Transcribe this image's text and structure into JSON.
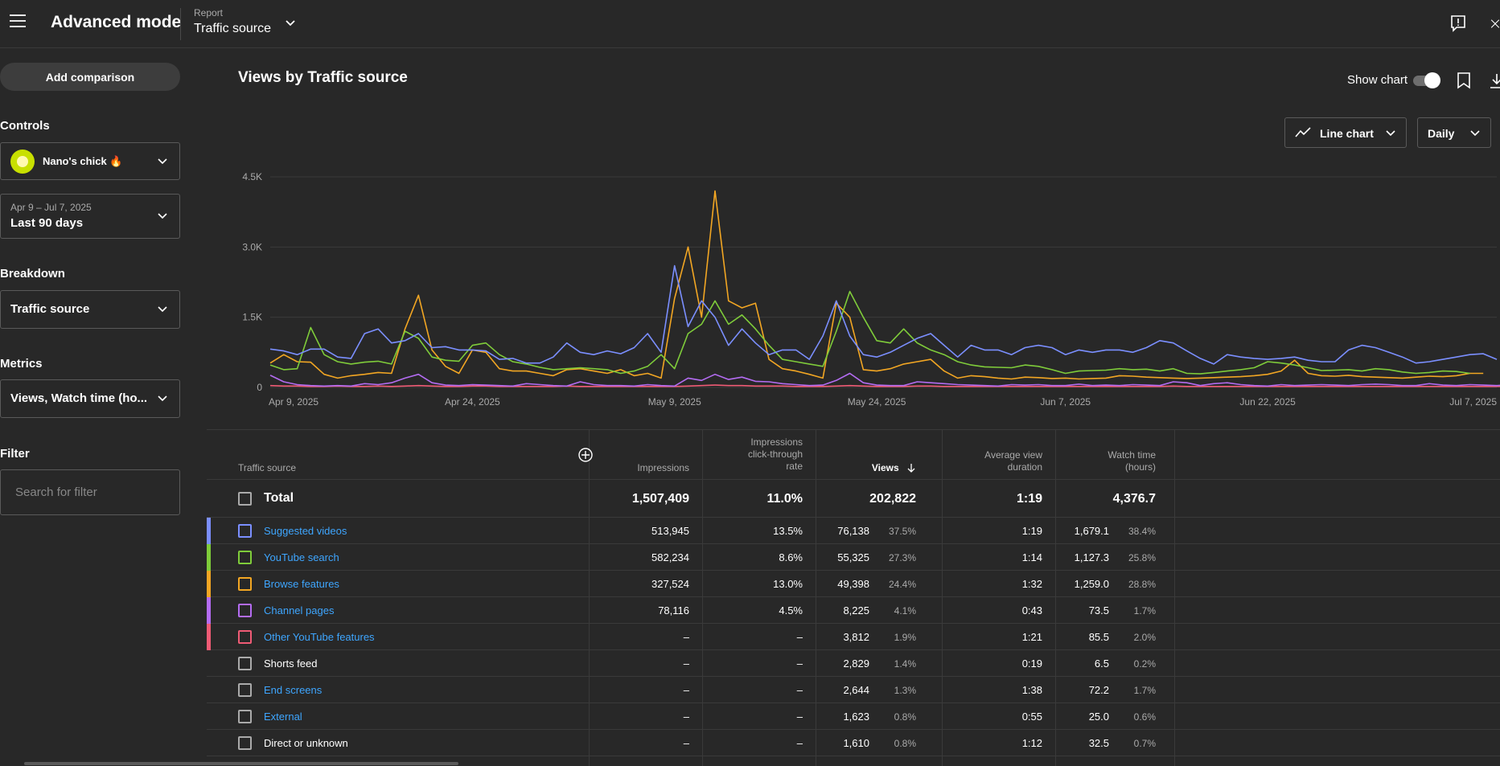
{
  "topbar": {
    "title": "Advanced mode",
    "report_label": "Report",
    "report_name": "Traffic source"
  },
  "sidebar": {
    "add_comparison": "Add comparison",
    "controls_label": "Controls",
    "channel_name": "Nano's chick 🔥",
    "date_range_small": "Apr 9 – Jul 7, 2025",
    "date_range_main": "Last 90 days",
    "breakdown_label": "Breakdown",
    "breakdown_value": "Traffic source",
    "metrics_label": "Metrics",
    "metrics_value": "Views, Watch time (ho...",
    "filter_label": "Filter",
    "filter_placeholder": "Search for filter"
  },
  "main": {
    "chart_title": "Views by Traffic source",
    "show_chart_label": "Show chart",
    "chart_type_label": "Line chart",
    "interval_label": "Daily"
  },
  "chart_data": {
    "type": "line",
    "yticks": [
      "4.5K",
      "3.0K",
      "1.5K",
      "0"
    ],
    "ylim": [
      0,
      4500
    ],
    "xticks": [
      "Apr 9, 2025",
      "Apr 24, 2025",
      "May 9, 2025",
      "May 24, 2025",
      "Jun 7, 2025",
      "Jun 22, 2025",
      "Jul 7, 2025"
    ],
    "grid": true,
    "series": [
      {
        "color": "#7b8fff",
        "values": [
          820,
          780,
          700,
          820,
          820,
          650,
          620,
          1150,
          1250,
          950,
          1000,
          1150,
          850,
          870,
          800,
          800,
          780,
          600,
          620,
          520,
          520,
          650,
          950,
          750,
          700,
          780,
          720,
          850,
          1150,
          750,
          2600,
          1300,
          1850,
          1500,
          900,
          1250,
          950,
          700,
          800,
          800,
          600,
          1100,
          1850,
          1100,
          700,
          650,
          750,
          900,
          1050,
          1150,
          900,
          650,
          900,
          800,
          800,
          700,
          850,
          900,
          850,
          700,
          800,
          750,
          800,
          800,
          750,
          850,
          1000,
          950,
          780,
          620,
          500,
          700,
          650,
          620,
          600,
          620,
          650,
          580,
          550,
          550,
          800,
          900,
          850,
          750,
          650,
          520,
          550,
          600,
          650,
          700,
          720,
          600
        ]
      },
      {
        "color": "#7fcc3a",
        "values": [
          480,
          380,
          400,
          1280,
          700,
          550,
          500,
          540,
          560,
          500,
          1200,
          1050,
          650,
          580,
          560,
          900,
          950,
          700,
          550,
          500,
          430,
          380,
          400,
          420,
          400,
          380,
          300,
          350,
          450,
          700,
          400,
          1150,
          1350,
          1850,
          1350,
          1550,
          1250,
          900,
          600,
          550,
          500,
          450,
          1200,
          2050,
          1500,
          1000,
          950,
          1250,
          950,
          800,
          700,
          550,
          480,
          440,
          430,
          420,
          480,
          450,
          380,
          300,
          350,
          360,
          370,
          400,
          380,
          390,
          350,
          400,
          300,
          290,
          320,
          350,
          380,
          420,
          550,
          520,
          480,
          420,
          360,
          370,
          380,
          350,
          400,
          380,
          330,
          300,
          320,
          350,
          340,
          300
        ]
      },
      {
        "color": "#f2a623",
        "values": [
          520,
          700,
          550,
          540,
          280,
          200,
          250,
          280,
          320,
          300,
          1250,
          1970,
          800,
          450,
          300,
          800,
          750,
          400,
          350,
          350,
          300,
          250,
          380,
          400,
          350,
          300,
          380,
          250,
          300,
          200,
          1900,
          3000,
          1500,
          4200,
          1850,
          1700,
          1800,
          600,
          400,
          350,
          280,
          200,
          1800,
          1500,
          380,
          350,
          400,
          500,
          550,
          600,
          350,
          200,
          250,
          230,
          200,
          180,
          220,
          210,
          190,
          200,
          180,
          190,
          200,
          250,
          240,
          220,
          210,
          200,
          190,
          200,
          210,
          220,
          230,
          250,
          280,
          350,
          580,
          300,
          250,
          240,
          260,
          230,
          220,
          210,
          200,
          220,
          240,
          230,
          250,
          300,
          300
        ]
      },
      {
        "color": "#b46cf2",
        "values": [
          260,
          120,
          60,
          40,
          30,
          40,
          30,
          80,
          60,
          100,
          200,
          280,
          100,
          50,
          40,
          60,
          50,
          40,
          30,
          80,
          60,
          40,
          30,
          120,
          60,
          40,
          40,
          30,
          60,
          40,
          30,
          200,
          150,
          280,
          170,
          220,
          130,
          120,
          80,
          60,
          40,
          50,
          150,
          300,
          100,
          50,
          40,
          40,
          120,
          100,
          80,
          60,
          50,
          40,
          30,
          60,
          50,
          60,
          40,
          40,
          70,
          40,
          50,
          40,
          60,
          50,
          40,
          120,
          100,
          40,
          80,
          100,
          60,
          40,
          30,
          60,
          40,
          50,
          60,
          50,
          40,
          60,
          70,
          60,
          40,
          40,
          80,
          50,
          40,
          60,
          50,
          40,
          60,
          40
        ]
      },
      {
        "color": "#ef5b75",
        "values": [
          40,
          30,
          30,
          20,
          20,
          30,
          20,
          20,
          30,
          20,
          30,
          40,
          30,
          20,
          20,
          30,
          30,
          20,
          20,
          20,
          20,
          20,
          30,
          20,
          20,
          20,
          20,
          20,
          20,
          20,
          20,
          30,
          40,
          50,
          40,
          40,
          30,
          30,
          30,
          20,
          20,
          20,
          30,
          40,
          30,
          20,
          20,
          20,
          30,
          30,
          20,
          20,
          20,
          20,
          20,
          20,
          20,
          20,
          20,
          20,
          20,
          20,
          20,
          20,
          20,
          20,
          20,
          30,
          20,
          20,
          20,
          20,
          20,
          20,
          20,
          20,
          20,
          20,
          20,
          20,
          20,
          20,
          20,
          20,
          20,
          20,
          20,
          20,
          20,
          20,
          20,
          20,
          20,
          20
        ]
      }
    ]
  },
  "table": {
    "headers": {
      "source": "Traffic source",
      "impressions": "Impressions",
      "ctr_line1": "Impressions",
      "ctr_line2": "click-through",
      "ctr_line3": "rate",
      "views": "Views",
      "avd_line1": "Average view",
      "avd_line2": "duration",
      "wt_line1": "Watch time",
      "wt_line2": "(hours)"
    },
    "total": {
      "label": "Total",
      "impressions": "1,507,409",
      "ctr": "11.0%",
      "views": "202,822",
      "avd": "1:19",
      "watch": "4,376.7"
    },
    "rows": [
      {
        "name": "Suggested videos",
        "color": "#7b8fff",
        "link": true,
        "impressions": "513,945",
        "ctr": "13.5%",
        "views": "76,138",
        "views_pct": "37.5%",
        "avd": "1:19",
        "watch": "1,679.1",
        "watch_pct": "38.4%"
      },
      {
        "name": "YouTube search",
        "color": "#7fcc3a",
        "link": true,
        "impressions": "582,234",
        "ctr": "8.6%",
        "views": "55,325",
        "views_pct": "27.3%",
        "avd": "1:14",
        "watch": "1,127.3",
        "watch_pct": "25.8%"
      },
      {
        "name": "Browse features",
        "color": "#f2a623",
        "link": true,
        "impressions": "327,524",
        "ctr": "13.0%",
        "views": "49,398",
        "views_pct": "24.4%",
        "avd": "1:32",
        "watch": "1,259.0",
        "watch_pct": "28.8%"
      },
      {
        "name": "Channel pages",
        "color": "#b46cf2",
        "link": true,
        "impressions": "78,116",
        "ctr": "4.5%",
        "views": "8,225",
        "views_pct": "4.1%",
        "avd": "0:43",
        "watch": "73.5",
        "watch_pct": "1.7%"
      },
      {
        "name": "Other YouTube features",
        "color": "#ef5b75",
        "link": true,
        "impressions": "–",
        "ctr": "–",
        "views": "3,812",
        "views_pct": "1.9%",
        "avd": "1:21",
        "watch": "85.5",
        "watch_pct": "2.0%"
      },
      {
        "name": "Shorts feed",
        "color": "",
        "link": false,
        "impressions": "–",
        "ctr": "–",
        "views": "2,829",
        "views_pct": "1.4%",
        "avd": "0:19",
        "watch": "6.5",
        "watch_pct": "0.2%"
      },
      {
        "name": "End screens",
        "color": "",
        "link": true,
        "impressions": "–",
        "ctr": "–",
        "views": "2,644",
        "views_pct": "1.3%",
        "avd": "1:38",
        "watch": "72.2",
        "watch_pct": "1.7%"
      },
      {
        "name": "External",
        "color": "",
        "link": true,
        "impressions": "–",
        "ctr": "–",
        "views": "1,623",
        "views_pct": "0.8%",
        "avd": "0:55",
        "watch": "25.0",
        "watch_pct": "0.6%"
      },
      {
        "name": "Direct or unknown",
        "color": "",
        "link": false,
        "impressions": "–",
        "ctr": "–",
        "views": "1,610",
        "views_pct": "0.8%",
        "avd": "1:12",
        "watch": "32.5",
        "watch_pct": "0.7%"
      }
    ]
  },
  "colors": {
    "link": "#3ea6ff",
    "background": "#282828",
    "grid": "#3a3a3a"
  }
}
